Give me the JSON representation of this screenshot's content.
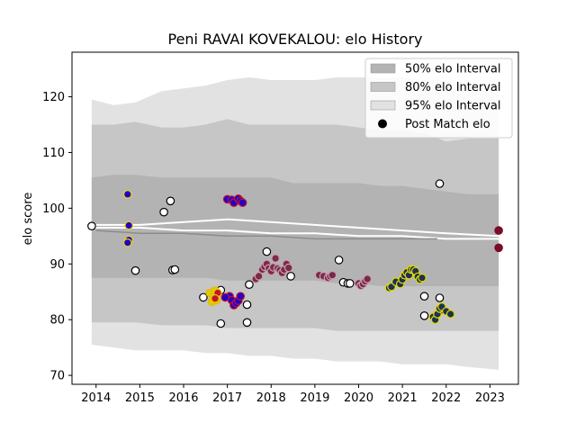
{
  "chart_data": {
    "type": "scatter",
    "title": "Peni RAVAI KOVEKALOU: elo History",
    "xlabel": "",
    "ylabel": "elo score",
    "xlim": [
      2013.45,
      2023.65
    ],
    "ylim": [
      68.4,
      128.0
    ],
    "x_ticks": [
      2014,
      2015,
      2016,
      2017,
      2018,
      2019,
      2020,
      2021,
      2022,
      2023
    ],
    "y_ticks": [
      70,
      80,
      90,
      100,
      110,
      120
    ],
    "grid": false,
    "legend_position": "top-right",
    "legend": [
      {
        "label": "50% elo Interval",
        "color": "#b3b3b3"
      },
      {
        "label": "80% elo Interval",
        "color": "#c6c6c6"
      },
      {
        "label": "95% elo Interval",
        "color": "#e2e2e2"
      },
      {
        "label": "Post Match elo",
        "color": "#000000"
      }
    ],
    "bands": {
      "x": [
        2013.9,
        2014.4,
        2014.9,
        2015.5,
        2016.0,
        2016.5,
        2017.0,
        2017.5,
        2018.0,
        2018.5,
        2019.0,
        2019.5,
        2020.0,
        2020.5,
        2021.0,
        2021.5,
        2022.0,
        2022.5,
        2023.2
      ],
      "p95_upper": [
        119.5,
        118.5,
        119.0,
        121.0,
        121.5,
        122.0,
        123.0,
        123.5,
        123.0,
        123.0,
        123.0,
        123.5,
        123.5,
        123.5,
        123.5,
        123.0,
        123.0,
        122.0,
        120.5
      ],
      "p80_upper": [
        115.0,
        115.0,
        115.5,
        114.5,
        114.5,
        115.0,
        116.0,
        115.0,
        115.0,
        115.0,
        115.0,
        115.0,
        114.5,
        114.0,
        114.0,
        113.5,
        112.0,
        112.5,
        112.5
      ],
      "p50_upper": [
        105.5,
        106.0,
        106.0,
        105.5,
        105.5,
        105.5,
        105.5,
        105.5,
        105.5,
        104.5,
        104.5,
        104.5,
        104.5,
        104.0,
        104.0,
        103.5,
        103.0,
        102.5,
        102.5
      ],
      "p50_lower": [
        87.5,
        87.5,
        87.5,
        87.5,
        87.5,
        87.5,
        87.0,
        87.0,
        87.0,
        87.0,
        87.0,
        86.5,
        86.5,
        86.0,
        86.0,
        86.0,
        86.0,
        86.0,
        86.0
      ],
      "p80_lower": [
        79.5,
        79.5,
        79.5,
        79.0,
        79.0,
        79.0,
        78.5,
        78.5,
        78.5,
        78.5,
        78.5,
        78.0,
        78.0,
        78.0,
        78.0,
        78.0,
        78.0,
        78.0,
        78.0
      ],
      "p95_lower": [
        75.5,
        75.0,
        74.5,
        74.5,
        74.5,
        74.0,
        74.0,
        73.5,
        73.5,
        73.0,
        73.0,
        72.5,
        72.5,
        72.5,
        72.0,
        72.0,
        72.0,
        71.5,
        71.0
      ]
    },
    "mean_lines": [
      {
        "x": [
          2013.9,
          2015.0,
          2016.0,
          2017.0,
          2018.0,
          2019.0,
          2020.0,
          2021.0,
          2022.0,
          2023.2
        ],
        "y": [
          97.0,
          97.0,
          97.5,
          98.0,
          97.5,
          97.0,
          96.5,
          96.0,
          95.5,
          95.0
        ]
      },
      {
        "x": [
          2013.9,
          2015.0,
          2016.0,
          2017.0,
          2018.0,
          2019.0,
          2020.0,
          2021.0,
          2022.0,
          2023.2
        ],
        "y": [
          96.5,
          96.5,
          96.0,
          96.0,
          95.5,
          95.5,
          95.0,
          95.0,
          94.5,
          94.5
        ]
      },
      {
        "x": [
          2014.0,
          2015.0,
          2016.0,
          2017.0,
          2018.0,
          2019.0,
          2020.0,
          2021.0,
          2021.8
        ],
        "y": [
          96.0,
          95.5,
          95.5,
          95.0,
          95.0,
          94.5,
          94.5,
          94.5,
          94.5
        ]
      }
    ],
    "series": [
      {
        "fill": "#ffffff",
        "edge": "#000000",
        "points": [
          [
            2013.9,
            96.8
          ],
          [
            2014.9,
            88.8
          ],
          [
            2015.55,
            99.3
          ],
          [
            2015.7,
            101.3
          ],
          [
            2015.75,
            88.9
          ],
          [
            2015.8,
            89.0
          ],
          [
            2016.45,
            84.0
          ],
          [
            2016.85,
            85.3
          ],
          [
            2016.85,
            79.3
          ],
          [
            2017.45,
            82.7
          ],
          [
            2017.45,
            79.5
          ],
          [
            2017.5,
            86.3
          ],
          [
            2017.9,
            92.2
          ],
          [
            2018.45,
            87.8
          ],
          [
            2019.55,
            90.7
          ],
          [
            2019.65,
            86.7
          ],
          [
            2019.75,
            86.5
          ],
          [
            2019.8,
            86.5
          ],
          [
            2021.5,
            84.2
          ],
          [
            2021.5,
            80.7
          ],
          [
            2021.85,
            104.4
          ],
          [
            2021.85,
            83.9
          ],
          [
            2021.9,
            81.9
          ]
        ]
      },
      {
        "fill": "#2200cc",
        "edge": "#e8d800",
        "points": [
          [
            2014.72,
            102.5
          ],
          [
            2014.75,
            96.9
          ],
          [
            2014.75,
            94.3
          ],
          [
            2014.72,
            93.8
          ]
        ]
      },
      {
        "fill": "#2200cc",
        "edge": "#c0152f",
        "points": [
          [
            2017.0,
            101.6
          ],
          [
            2017.1,
            101.5
          ],
          [
            2017.15,
            101.0
          ],
          [
            2017.25,
            101.7
          ],
          [
            2017.3,
            101.3
          ],
          [
            2017.35,
            101.0
          ],
          [
            2017.05,
            84.2
          ],
          [
            2017.1,
            83.5
          ],
          [
            2017.15,
            82.6
          ],
          [
            2017.2,
            83.0
          ],
          [
            2017.25,
            83.4
          ],
          [
            2017.3,
            84.2
          ],
          [
            2016.95,
            84.0
          ]
        ]
      },
      {
        "fill": "#e8c800",
        "edge": "#d8c000",
        "points": [
          [
            2016.6,
            84.8
          ],
          [
            2016.65,
            83.2
          ],
          [
            2016.7,
            84.2
          ],
          [
            2016.72,
            85.2
          ],
          [
            2016.75,
            83.5
          ]
        ]
      },
      {
        "fill": "#c0152f",
        "edge": "#e8c800",
        "points": [
          [
            2016.78,
            84.8
          ],
          [
            2016.72,
            83.8
          ]
        ]
      },
      {
        "fill": "#7a2a48",
        "edge": "#c8a0b0",
        "points": [
          [
            2017.65,
            87.3
          ],
          [
            2017.72,
            87.8
          ],
          [
            2017.8,
            89.0
          ],
          [
            2017.85,
            89.5
          ],
          [
            2017.9,
            90.0
          ],
          [
            2017.95,
            89.2
          ],
          [
            2018.0,
            88.7
          ],
          [
            2018.05,
            89.4
          ],
          [
            2018.1,
            91.0
          ],
          [
            2018.15,
            89.2
          ],
          [
            2018.2,
            88.9
          ],
          [
            2018.25,
            88.4
          ],
          [
            2018.3,
            89.0
          ],
          [
            2018.35,
            90.0
          ],
          [
            2018.4,
            89.3
          ],
          [
            2019.1,
            88.0
          ],
          [
            2019.2,
            87.8
          ],
          [
            2019.3,
            87.5
          ],
          [
            2019.35,
            87.8
          ],
          [
            2019.4,
            88.0
          ],
          [
            2020.0,
            86.5
          ],
          [
            2020.05,
            86.1
          ],
          [
            2020.1,
            86.4
          ],
          [
            2020.15,
            86.9
          ],
          [
            2020.2,
            87.3
          ]
        ]
      },
      {
        "fill": "#1a3355",
        "edge": "#e8d800",
        "points": [
          [
            2020.7,
            85.7
          ],
          [
            2020.75,
            85.9
          ],
          [
            2020.85,
            86.8
          ],
          [
            2020.95,
            86.4
          ],
          [
            2021.0,
            87.2
          ],
          [
            2021.05,
            88.0
          ],
          [
            2021.1,
            88.5
          ],
          [
            2021.15,
            88.0
          ],
          [
            2021.2,
            89.0
          ],
          [
            2021.25,
            89.0
          ],
          [
            2021.3,
            88.7
          ],
          [
            2021.35,
            87.7
          ],
          [
            2021.4,
            87.2
          ],
          [
            2021.45,
            87.5
          ],
          [
            2021.7,
            80.5
          ],
          [
            2021.75,
            80.0
          ],
          [
            2021.8,
            81.0
          ],
          [
            2021.85,
            82.0
          ],
          [
            2021.9,
            82.3
          ],
          [
            2022.0,
            81.5
          ],
          [
            2022.1,
            81.0
          ]
        ]
      },
      {
        "fill": "#7a0c2a",
        "edge": "#7a0c2a",
        "points": [
          [
            2023.2,
            96.0
          ],
          [
            2023.2,
            92.9
          ]
        ]
      }
    ]
  }
}
